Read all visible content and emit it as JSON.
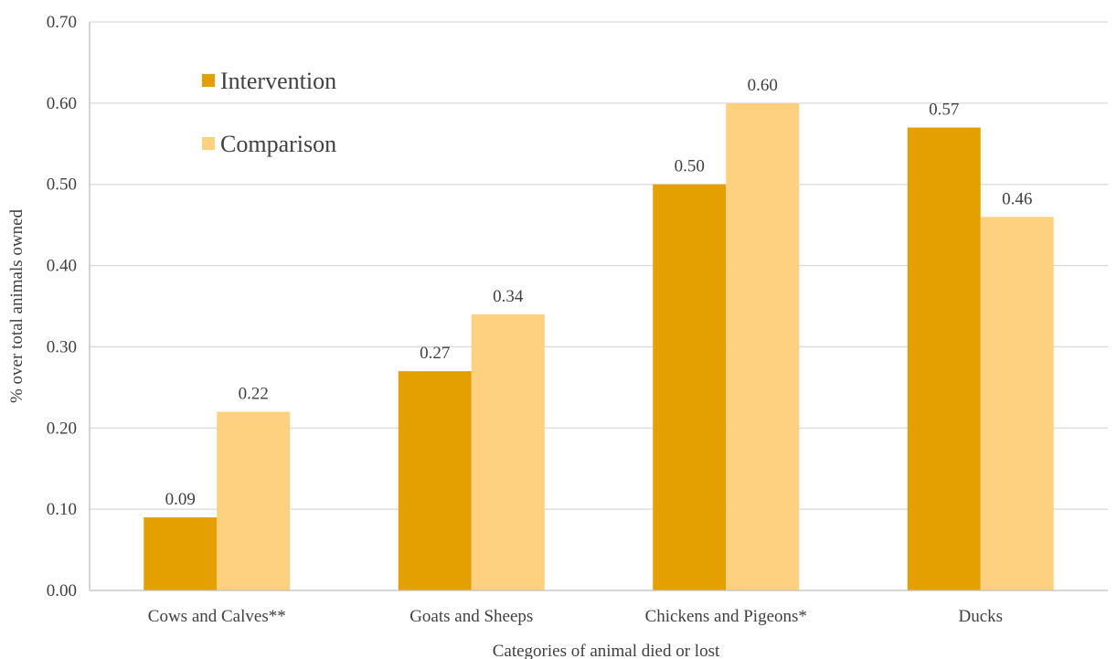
{
  "chart_data": {
    "type": "bar",
    "categories": [
      "Cows and Calves**",
      "Goats and Sheeps",
      "Chickens and Pigeons*",
      "Ducks"
    ],
    "series": [
      {
        "name": "Intervention",
        "color": "#E3A000",
        "values": [
          0.09,
          0.27,
          0.5,
          0.57
        ],
        "labels": [
          "0.09",
          "0.27",
          "0.50",
          "0.57"
        ]
      },
      {
        "name": "Comparison",
        "color": "#FDD17F",
        "values": [
          0.22,
          0.34,
          0.6,
          0.46
        ],
        "labels": [
          "0.22",
          "0.34",
          "0.60",
          "0.46"
        ]
      }
    ],
    "xlabel": "Categories of animal died or lost",
    "ylabel": "% over total animals owned",
    "ylim": [
      0,
      0.7
    ],
    "yticks": [
      "0.00",
      "0.10",
      "0.20",
      "0.30",
      "0.40",
      "0.50",
      "0.60",
      "0.70"
    ],
    "grid": true,
    "legend_position": "top-left"
  }
}
